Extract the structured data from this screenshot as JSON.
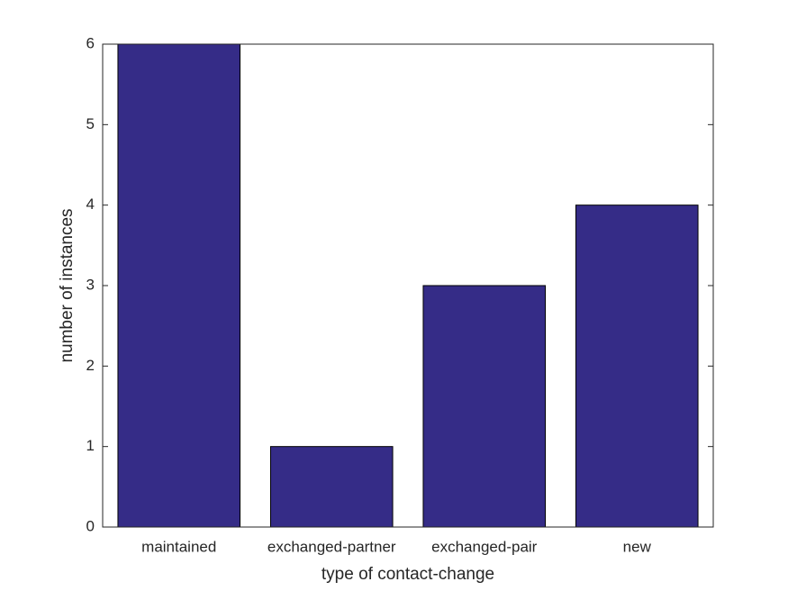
{
  "chart_data": {
    "type": "bar",
    "categories": [
      "maintained",
      "exchanged-partner",
      "exchanged-pair",
      "new"
    ],
    "values": [
      6,
      1,
      3,
      4
    ],
    "color": "#352c87",
    "xlabel": "type of contact-change",
    "ylabel": "number of instances",
    "ylim": [
      0,
      6
    ],
    "yticks": [
      0,
      1,
      2,
      3,
      4,
      5,
      6
    ],
    "grid": false
  }
}
